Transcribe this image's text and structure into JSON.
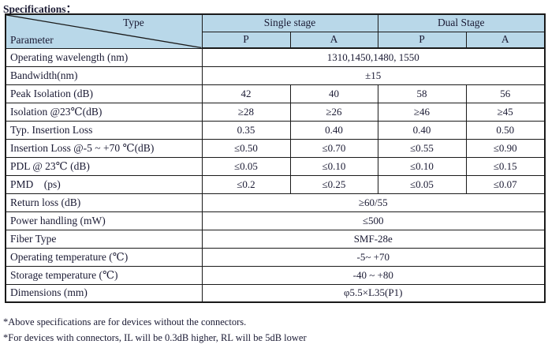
{
  "page": {
    "title_label": "Specifications："
  },
  "colors": {
    "header_bg": "#b9d8e9",
    "border": "#1a1a1a",
    "text": "#1a1a33"
  },
  "table": {
    "corner": {
      "top_right": "Type",
      "bottom_left": "Parameter"
    },
    "groups": [
      {
        "label": "Single stage",
        "subcols": [
          "P",
          "A"
        ]
      },
      {
        "label": "Dual Stage",
        "subcols": [
          "P",
          "A"
        ]
      }
    ],
    "rows": [
      {
        "label": "Operating wavelength (nm)",
        "values": [
          "1310,1450,1480, 1550"
        ]
      },
      {
        "label": "Bandwidth(nm)",
        "values": [
          "±15"
        ]
      },
      {
        "label": "Peak Isolation (dB)",
        "values": [
          "42",
          "40",
          "58",
          "56"
        ]
      },
      {
        "label": "Isolation @23℃(dB)",
        "values": [
          "≥28",
          "≥26",
          "≥46",
          "≥45"
        ]
      },
      {
        "label": "Typ. Insertion Loss",
        "values": [
          "0.35",
          "0.40",
          "0.40",
          "0.50"
        ]
      },
      {
        "label": "Insertion Loss @-5 ~ +70 ℃(dB)",
        "values": [
          "≤0.50",
          "≤0.70",
          "≤0.55",
          "≤0.90"
        ]
      },
      {
        "label": "PDL @ 23℃ (dB)",
        "values": [
          "≤0.05",
          "≤0.10",
          "≤0.10",
          "≤0.15"
        ]
      },
      {
        "label": "PMD    (ps)",
        "values": [
          "≤0.2",
          "≤0.25",
          "≤0.05",
          "≤0.07"
        ]
      },
      {
        "label": "Return loss (dB)",
        "values": [
          "≥60/55"
        ]
      },
      {
        "label": "Power handling (mW)",
        "values": [
          "≤500"
        ]
      },
      {
        "label": "Fiber Type",
        "values": [
          "SMF-28e"
        ]
      },
      {
        "label": "Operating temperature (℃)",
        "values": [
          "-5~ +70"
        ]
      },
      {
        "label": "Storage temperature (℃)",
        "values": [
          "-40 ~ +80"
        ]
      },
      {
        "label": "Dimensions (mm)",
        "values": [
          "φ5.5×L35(P1)"
        ]
      }
    ]
  },
  "footnotes": [
    "*Above specifications are for devices without the connectors.",
    "*For devices with connectors, IL will be 0.3dB higher, RL will be 5dB lower"
  ]
}
